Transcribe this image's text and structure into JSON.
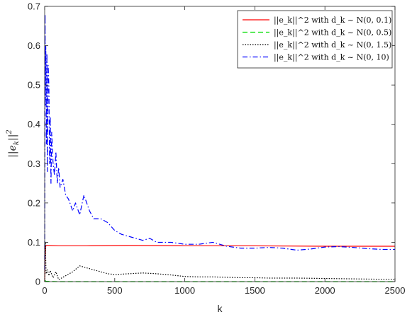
{
  "chart_data": {
    "type": "line",
    "xlabel": "k",
    "ylabel": "||e_k||^2",
    "xlim": [
      0,
      2500
    ],
    "ylim": [
      0,
      0.7
    ],
    "xticks": [
      "0",
      "500",
      "1000",
      "1500",
      "2000",
      "2500"
    ],
    "yticks": [
      "0",
      "0.1",
      "0.2",
      "0.3",
      "0.4",
      "0.5",
      "0.6",
      "0.7"
    ],
    "grid": false,
    "legend_position": "top-right",
    "series": [
      {
        "name": "||e_k||^2 with d_k ~ N(0, 0.1)",
        "color": "#ff0000",
        "style": "solid",
        "points": [
          [
            0,
            0.0
          ],
          [
            3,
            0.06
          ],
          [
            8,
            0.092
          ],
          [
            20,
            0.092
          ],
          [
            100,
            0.091
          ],
          [
            300,
            0.091
          ],
          [
            600,
            0.092
          ],
          [
            1000,
            0.091
          ],
          [
            1500,
            0.091
          ],
          [
            2000,
            0.09
          ],
          [
            2500,
            0.09
          ]
        ]
      },
      {
        "name": "||e_k||^2 with d_k ~ N(0, 0.5)",
        "color": "#00dd00",
        "style": "dashed",
        "points": [
          [
            0,
            0.003
          ],
          [
            10,
            0.001
          ],
          [
            100,
            0.0
          ],
          [
            500,
            0.0
          ],
          [
            1000,
            0.0
          ],
          [
            1500,
            0.0
          ],
          [
            2000,
            0.0
          ],
          [
            2500,
            0.0
          ]
        ]
      },
      {
        "name": "||e_k||^2 with d_k ~ N(0, 1.5)",
        "color": "#000000",
        "style": "dotted",
        "points": [
          [
            0,
            0.0
          ],
          [
            5,
            0.1
          ],
          [
            10,
            0.02
          ],
          [
            20,
            0.03
          ],
          [
            30,
            0.015
          ],
          [
            40,
            0.028
          ],
          [
            60,
            0.01
          ],
          [
            80,
            0.025
          ],
          [
            100,
            0.005
          ],
          [
            150,
            0.015
          ],
          [
            200,
            0.025
          ],
          [
            250,
            0.04
          ],
          [
            300,
            0.035
          ],
          [
            350,
            0.03
          ],
          [
            400,
            0.025
          ],
          [
            450,
            0.02
          ],
          [
            500,
            0.018
          ],
          [
            600,
            0.02
          ],
          [
            700,
            0.022
          ],
          [
            800,
            0.02
          ],
          [
            900,
            0.017
          ],
          [
            1000,
            0.013
          ],
          [
            1100,
            0.012
          ],
          [
            1200,
            0.012
          ],
          [
            1300,
            0.011
          ],
          [
            1400,
            0.01
          ],
          [
            1500,
            0.01
          ],
          [
            1600,
            0.009
          ],
          [
            1800,
            0.009
          ],
          [
            2000,
            0.008
          ],
          [
            2200,
            0.007
          ],
          [
            2400,
            0.006
          ],
          [
            2500,
            0.006
          ]
        ]
      },
      {
        "name": "||e_k||^2 with d_k ~ N(0, 10)",
        "color": "#0000ff",
        "style": "dashdot",
        "points": [
          [
            0,
            0.03
          ],
          [
            3,
            0.68
          ],
          [
            5,
            0.45
          ],
          [
            8,
            0.6
          ],
          [
            12,
            0.35
          ],
          [
            16,
            0.58
          ],
          [
            20,
            0.28
          ],
          [
            25,
            0.55
          ],
          [
            30,
            0.5
          ],
          [
            35,
            0.3
          ],
          [
            40,
            0.42
          ],
          [
            45,
            0.25
          ],
          [
            50,
            0.38
          ],
          [
            60,
            0.3
          ],
          [
            70,
            0.27
          ],
          [
            80,
            0.33
          ],
          [
            90,
            0.25
          ],
          [
            100,
            0.29
          ],
          [
            110,
            0.24
          ],
          [
            130,
            0.26
          ],
          [
            150,
            0.22
          ],
          [
            170,
            0.21
          ],
          [
            200,
            0.18
          ],
          [
            220,
            0.2
          ],
          [
            250,
            0.17
          ],
          [
            280,
            0.22
          ],
          [
            300,
            0.2
          ],
          [
            320,
            0.18
          ],
          [
            350,
            0.16
          ],
          [
            400,
            0.16
          ],
          [
            450,
            0.15
          ],
          [
            500,
            0.13
          ],
          [
            550,
            0.12
          ],
          [
            600,
            0.115
          ],
          [
            650,
            0.11
          ],
          [
            700,
            0.105
          ],
          [
            750,
            0.11
          ],
          [
            800,
            0.1
          ],
          [
            900,
            0.1
          ],
          [
            1000,
            0.095
          ],
          [
            1100,
            0.095
          ],
          [
            1200,
            0.1
          ],
          [
            1300,
            0.09
          ],
          [
            1400,
            0.085
          ],
          [
            1500,
            0.085
          ],
          [
            1600,
            0.087
          ],
          [
            1700,
            0.085
          ],
          [
            1800,
            0.08
          ],
          [
            1900,
            0.083
          ],
          [
            2000,
            0.088
          ],
          [
            2100,
            0.089
          ],
          [
            2200,
            0.087
          ],
          [
            2300,
            0.084
          ],
          [
            2400,
            0.082
          ],
          [
            2500,
            0.082
          ]
        ]
      }
    ]
  }
}
